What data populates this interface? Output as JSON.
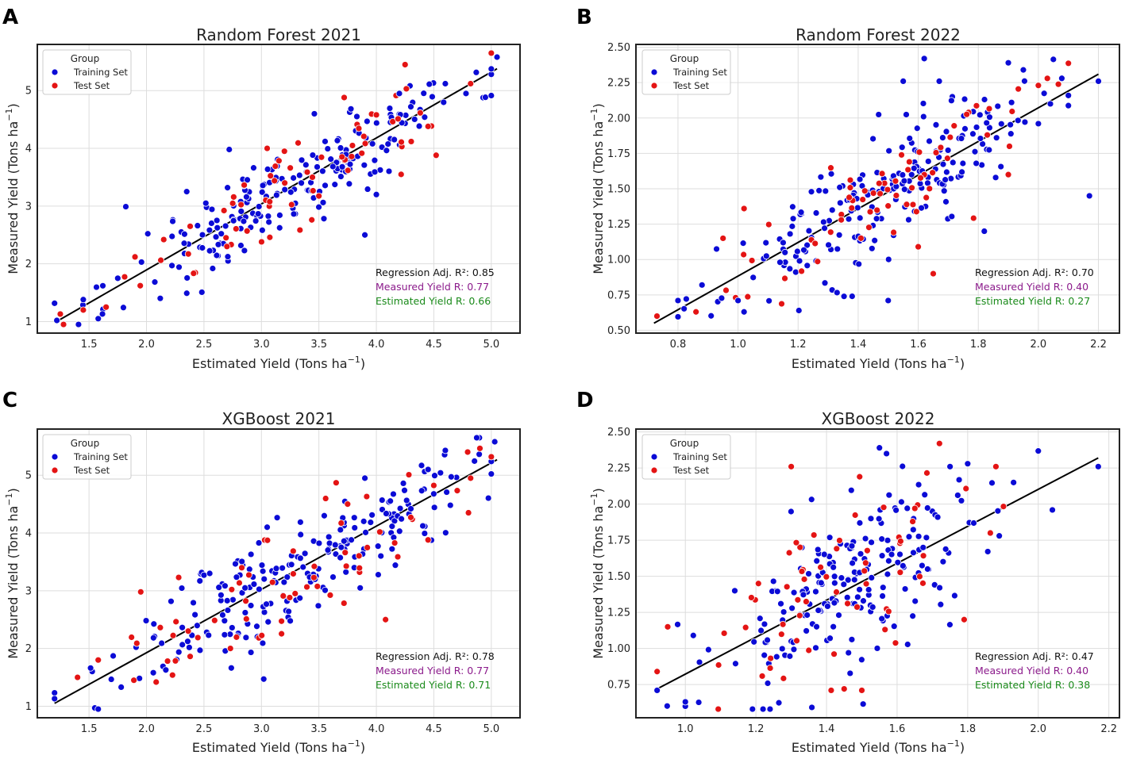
{
  "colors": {
    "training": "#0b0bd6",
    "test": "#e41414",
    "regression_line": "#000000",
    "measured_r_text": "#8b1a8b",
    "estimated_r_text": "#1a8a1a",
    "grid": "#dddddd",
    "frame": "#222222"
  },
  "chart_data": [
    {
      "panel_letter": "A",
      "type": "scatter",
      "title": "Random Forest 2021",
      "xlabel": "Estimated Yield (Tons ha$^{-1}$)",
      "xlabel_main": "Estimated Yield (Tons ha",
      "xlabel_sup": "−1",
      "xlabel_tail": ")",
      "ylabel_main": "Measured Yield (Tons ha",
      "ylabel_sup": "−1",
      "ylabel_tail": ")",
      "xlim": [
        1.05,
        5.25
      ],
      "ylim": [
        0.8,
        5.8
      ],
      "xticks": [
        1.5,
        2.0,
        2.5,
        3.0,
        3.5,
        4.0,
        4.5,
        5.0
      ],
      "xtick_labels": [
        "1.5",
        "2.0",
        "2.5",
        "3.0",
        "3.5",
        "4.0",
        "4.5",
        "5.0"
      ],
      "yticks": [
        1,
        2,
        3,
        4,
        5
      ],
      "ytick_labels": [
        "1",
        "2",
        "3",
        "4",
        "5"
      ],
      "legend": {
        "title": "Group",
        "entries": [
          "Training Set",
          "Test Set"
        ],
        "position": "top-left"
      },
      "annotations": {
        "regression": "Regression Adj. R²: 0.85",
        "measured_r": "Measured Yield R: 0.77",
        "estimated_r": "Estimated Yield R: 0.66"
      },
      "regression_line": {
        "x": [
          1.2,
          5.05
        ],
        "y": [
          0.98,
          5.38
        ]
      },
      "cloud": {
        "seed": 11,
        "n_train": 210,
        "n_test": 60,
        "x_min": 1.2,
        "x_max": 5.0,
        "x_mean": 3.3,
        "x_sd": 0.75,
        "noise": 0.38
      },
      "series": [
        {
          "name": "Training Set",
          "x": [
            1.22,
            1.45,
            1.58,
            1.62,
            1.75,
            1.82,
            2.72,
            2.35,
            3.9,
            4.0,
            4.2,
            4.3,
            4.6,
            4.78,
            5.05
          ],
          "y": [
            1.02,
            1.38,
            1.05,
            1.62,
            1.75,
            2.99,
            3.98,
            3.25,
            2.5,
            3.2,
            4.95,
            4.72,
            5.12,
            4.95,
            5.58
          ]
        },
        {
          "name": "Test Set",
          "x": [
            1.25,
            1.45,
            1.9,
            2.15,
            2.38,
            2.7,
            3.05,
            3.2,
            3.72,
            4.0,
            4.25,
            4.45,
            4.52,
            4.82
          ],
          "y": [
            1.13,
            1.2,
            2.12,
            2.42,
            2.65,
            2.3,
            4.0,
            3.95,
            4.88,
            4.58,
            5.45,
            4.38,
            3.88,
            5.12
          ]
        }
      ]
    },
    {
      "panel_letter": "B",
      "type": "scatter",
      "title": "Random Forest 2022",
      "xlabel": "Estimated Yield (Tons ha$^{-1}$)",
      "xlabel_main": "Estimated Yield (Tons ha",
      "xlabel_sup": "−1",
      "xlabel_tail": ")",
      "ylabel_main": "Measured Yield (Tons ha",
      "ylabel_sup": "−1",
      "ylabel_tail": ")",
      "xlim": [
        0.66,
        2.27
      ],
      "ylim": [
        0.48,
        2.52
      ],
      "xticks": [
        0.8,
        1.0,
        1.2,
        1.4,
        1.6,
        1.8,
        2.0,
        2.2
      ],
      "xtick_labels": [
        "0.8",
        "1.0",
        "1.2",
        "1.4",
        "1.6",
        "1.8",
        "2.0",
        "2.2"
      ],
      "yticks": [
        0.5,
        0.75,
        1.0,
        1.25,
        1.5,
        1.75,
        2.0,
        2.25,
        2.5
      ],
      "ytick_labels": [
        "0.50",
        "0.75",
        "1.00",
        "1.25",
        "1.50",
        "1.75",
        "2.00",
        "2.25",
        "2.50"
      ],
      "legend": {
        "title": "Group",
        "entries": [
          "Training Set",
          "Test Set"
        ],
        "position": "top-left"
      },
      "annotations": {
        "regression": "Regression Adj. R²: 0.70",
        "measured_r": "Measured Yield R: 0.40",
        "estimated_r": "Estimated Yield R: 0.27"
      },
      "regression_line": {
        "x": [
          0.72,
          2.2
        ],
        "y": [
          0.55,
          2.31
        ]
      },
      "cloud": {
        "seed": 23,
        "n_train": 210,
        "n_test": 65,
        "x_min": 0.8,
        "x_max": 2.1,
        "x_mean": 1.48,
        "x_sd": 0.26,
        "noise": 0.19
      },
      "series": [
        {
          "name": "Training Set",
          "x": [
            0.8,
            0.88,
            1.0,
            1.02,
            1.38,
            1.5,
            1.55,
            1.62,
            1.67,
            1.82,
            1.9,
            1.95,
            2.0,
            2.04,
            2.17,
            2.2
          ],
          "y": [
            0.71,
            0.82,
            0.71,
            0.63,
            0.74,
            0.71,
            2.26,
            2.42,
            2.26,
            1.2,
            2.39,
            2.34,
            1.96,
            2.1,
            1.45,
            2.26
          ]
        },
        {
          "name": "Test Set",
          "x": [
            0.73,
            0.86,
            0.95,
            1.02,
            1.6,
            1.65,
            1.83,
            1.9,
            2.0,
            2.03
          ],
          "y": [
            0.6,
            0.63,
            1.15,
            1.36,
            1.09,
            0.9,
            1.88,
            1.6,
            2.23,
            2.28
          ]
        }
      ]
    },
    {
      "panel_letter": "C",
      "type": "scatter",
      "title": "XGBoost 2021",
      "xlabel": "Estimated Yield (Tons ha$^{-1}$)",
      "xlabel_main": "Estimated Yield (Tons ha",
      "xlabel_sup": "−1",
      "xlabel_tail": ")",
      "ylabel_main": "Measured Yield (Tons ha",
      "ylabel_sup": "−1",
      "ylabel_tail": ")",
      "xlim": [
        1.05,
        5.25
      ],
      "ylim": [
        0.8,
        5.8
      ],
      "xticks": [
        1.5,
        2.0,
        2.5,
        3.0,
        3.5,
        4.0,
        4.5,
        5.0
      ],
      "xtick_labels": [
        "1.5",
        "2.0",
        "2.5",
        "3.0",
        "3.5",
        "4.0",
        "4.5",
        "5.0"
      ],
      "yticks": [
        1,
        2,
        3,
        4,
        5
      ],
      "ytick_labels": [
        "1",
        "2",
        "3",
        "4",
        "5"
      ],
      "legend": {
        "title": "Group",
        "entries": [
          "Training Set",
          "Test Set"
        ],
        "position": "top-left"
      },
      "annotations": {
        "regression": "Regression Adj. R²: 0.78",
        "measured_r": "Measured Yield R: 0.77",
        "estimated_r": "Estimated Yield R: 0.71"
      },
      "regression_line": {
        "x": [
          1.2,
          5.05
        ],
        "y": [
          1.05,
          5.27
        ]
      },
      "cloud": {
        "seed": 37,
        "n_train": 210,
        "n_test": 60,
        "x_min": 1.2,
        "x_max": 5.0,
        "x_mean": 3.3,
        "x_sd": 0.75,
        "noise": 0.45
      },
      "series": [
        {
          "name": "Training Set",
          "x": [
            1.2,
            1.55,
            1.58,
            2.5,
            2.55,
            3.02,
            3.05,
            3.9,
            4.05,
            4.3,
            4.45,
            4.6,
            5.03
          ],
          "y": [
            1.13,
            0.97,
            0.95,
            3.27,
            3.3,
            1.47,
            4.1,
            4.95,
            4.57,
            4.42,
            5.1,
            5.43,
            5.58
          ]
        },
        {
          "name": "Test Set",
          "x": [
            1.4,
            1.58,
            1.95,
            2.28,
            3.65,
            3.75,
            4.08,
            4.3,
            4.45,
            4.82
          ],
          "y": [
            1.5,
            1.8,
            2.98,
            3.23,
            4.87,
            4.5,
            2.5,
            4.27,
            3.88,
            4.95
          ]
        }
      ]
    },
    {
      "panel_letter": "D",
      "type": "scatter",
      "title": "XGBoost 2022",
      "xlabel": "Estimated Yield (Tons ha$^{-1}$)",
      "xlabel_main": "Estimated Yield (Tons ha",
      "xlabel_sup": "−1",
      "xlabel_tail": ")",
      "ylabel_main": "Measured Yield (Tons ha",
      "ylabel_sup": "−1",
      "ylabel_tail": ")",
      "xlim": [
        0.86,
        2.23
      ],
      "ylim": [
        0.52,
        2.52
      ],
      "xticks": [
        1.0,
        1.2,
        1.4,
        1.6,
        1.8,
        2.0,
        2.2
      ],
      "xtick_labels": [
        "1.0",
        "1.2",
        "1.4",
        "1.6",
        "1.8",
        "2.0",
        "2.2"
      ],
      "yticks": [
        0.75,
        1.0,
        1.25,
        1.5,
        1.75,
        2.0,
        2.25,
        2.5
      ],
      "ytick_labels": [
        "0.75",
        "1.00",
        "1.25",
        "1.50",
        "1.75",
        "2.00",
        "2.25",
        "2.50"
      ],
      "legend": {
        "title": "Group",
        "entries": [
          "Training Set",
          "Test Set"
        ],
        "position": "top-left"
      },
      "annotations": {
        "regression": "Regression Adj. R²: 0.47",
        "measured_r": "Measured Yield R: 0.40",
        "estimated_r": "Estimated Yield R: 0.38"
      },
      "regression_line": {
        "x": [
          0.92,
          2.17
        ],
        "y": [
          0.72,
          2.32
        ]
      },
      "cloud": {
        "seed": 53,
        "n_train": 200,
        "n_test": 60,
        "x_min": 0.92,
        "x_max": 2.0,
        "x_mean": 1.48,
        "x_sd": 0.2,
        "noise": 0.3
      },
      "series": [
        {
          "name": "Training Set",
          "x": [
            0.92,
            1.0,
            1.0,
            1.14,
            1.55,
            1.57,
            1.75,
            1.8,
            1.93,
            2.04,
            2.17
          ],
          "y": [
            0.71,
            0.6,
            0.63,
            1.4,
            2.39,
            2.35,
            2.26,
            2.28,
            2.15,
            1.96,
            2.26
          ]
        },
        {
          "name": "Test Set",
          "x": [
            0.92,
            0.95,
            1.3,
            1.72,
            1.88,
            1.79,
            1.45,
            1.5
          ],
          "y": [
            0.84,
            1.15,
            2.26,
            2.42,
            2.26,
            1.2,
            0.72,
            0.71
          ]
        }
      ]
    }
  ]
}
